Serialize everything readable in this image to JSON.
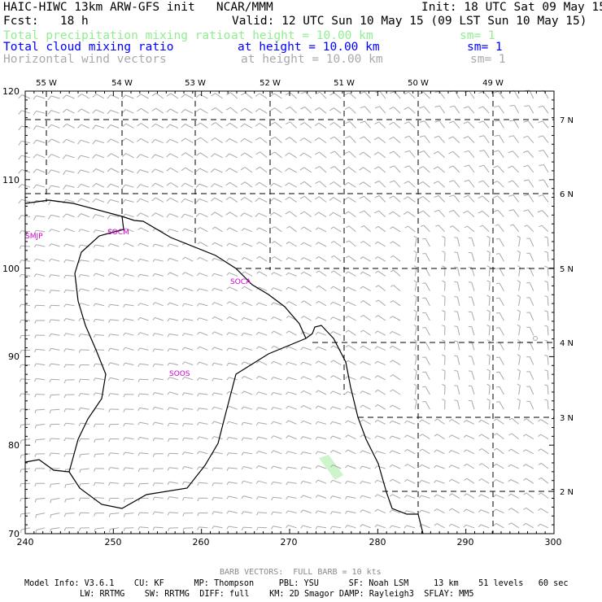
{
  "header": {
    "title": "HAIC-HIWC 13km ARW-GFS init   NCAR/MMM",
    "init": "Init: 18 UTC Sat 09 May 15",
    "fcst": "Fcst:   18 h",
    "valid": "Valid: 12 UTC Sun 10 May 15 (09 LST Sun 10 May 15)",
    "fields": [
      {
        "name": "Total precipitation mixing ratio",
        "height": "at height = 10.00 km",
        "sm": "sm= 1",
        "color": "#90ee90"
      },
      {
        "name": "Total cloud mixing ratio",
        "height": "at height = 10.00 km",
        "sm": "sm= 1",
        "color": "#0000ff"
      },
      {
        "name": "Horizontal wind vectors",
        "height": "at height = 10.00 km",
        "sm": "sm= 1",
        "color": "#a9a9a9"
      }
    ]
  },
  "map": {
    "x_ticks": [
      "240",
      "250",
      "260",
      "270",
      "280",
      "290",
      "300"
    ],
    "y_ticks": [
      "70",
      "80",
      "90",
      "100",
      "110",
      "120"
    ],
    "lon_labels": [
      "55 W",
      "54 W",
      "53 W",
      "52 W",
      "51 W",
      "50 W",
      "49 W"
    ],
    "lat_labels": [
      "7 N",
      "6 N",
      "5 N",
      "4 N",
      "3 N",
      "2 N"
    ],
    "stations": [
      {
        "code": "SMJP",
        "color": "#cc00cc"
      },
      {
        "code": "SOCM",
        "color": "#cc00cc"
      },
      {
        "code": "SOCA",
        "color": "#cc00cc"
      },
      {
        "code": "SOOS",
        "color": "#cc00cc"
      }
    ],
    "coast_color": "#000000",
    "grid_color": "#000000",
    "barb_color": "#a9a9a9",
    "precip_color": "#ccf5cc"
  },
  "footer": {
    "barb_note": "BARB VECTORS:  FULL BARB = 10 kts",
    "line1": "Model Info: V3.6.1    CU: KF      MP: Thompson     PBL: YSU      SF: Noah LSM     13 km    51 levels   60 sec",
    "line2": "LW: RRTMG    SW: RRTMG  DIFF: full    KM: 2D Smagor DAMP: Rayleigh3  SFLAY: MM5"
  }
}
